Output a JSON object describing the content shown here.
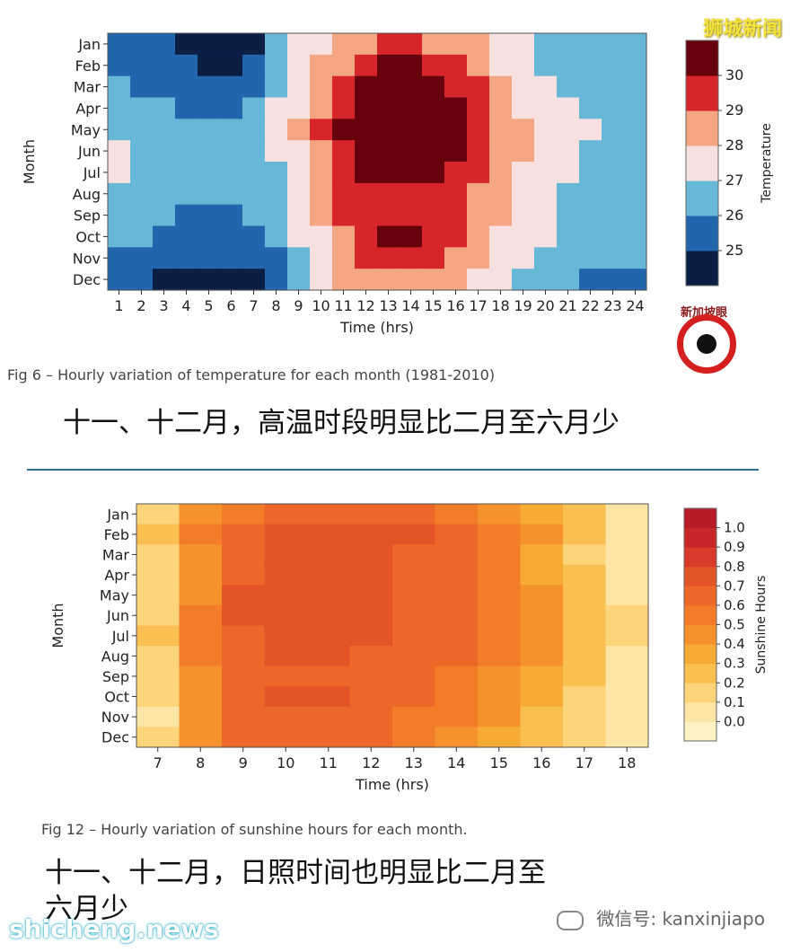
{
  "header": {
    "watermark_text": "狮城新闻"
  },
  "chart_data": [
    {
      "type": "heatmap",
      "title": "",
      "xlabel": "Time (hrs)",
      "ylabel": "Month",
      "x": [
        1,
        2,
        3,
        4,
        5,
        6,
        7,
        8,
        9,
        10,
        11,
        12,
        13,
        14,
        15,
        16,
        17,
        18,
        19,
        20,
        21,
        22,
        23,
        24
      ],
      "y": [
        "Jan",
        "Feb",
        "Mar",
        "Apr",
        "May",
        "Jun",
        "Jul",
        "Aug",
        "Sep",
        "Oct",
        "Nov",
        "Dec"
      ],
      "values": [
        [
          25.5,
          25.2,
          25.0,
          24.9,
          24.8,
          24.8,
          24.9,
          26.2,
          27.0,
          27.7,
          28.3,
          28.7,
          29.0,
          29.0,
          28.9,
          28.5,
          28.0,
          27.5,
          27.0,
          26.8,
          26.5,
          26.2,
          26.0,
          26.0
        ],
        [
          25.6,
          25.3,
          25.1,
          25.0,
          24.9,
          24.9,
          25.0,
          26.4,
          27.3,
          28.0,
          28.8,
          29.5,
          30.0,
          30.0,
          29.8,
          29.0,
          28.4,
          27.8,
          27.2,
          26.8,
          26.5,
          26.3,
          26.1,
          26.0
        ],
        [
          26.1,
          25.8,
          25.6,
          25.5,
          25.4,
          25.4,
          25.6,
          26.8,
          27.7,
          28.6,
          29.5,
          30.2,
          30.5,
          30.5,
          30.3,
          29.8,
          29.0,
          28.2,
          27.5,
          27.1,
          26.8,
          26.5,
          26.3,
          26.2
        ],
        [
          26.4,
          26.2,
          26.0,
          25.9,
          25.8,
          25.8,
          26.0,
          27.0,
          27.9,
          28.8,
          29.8,
          30.5,
          30.8,
          30.8,
          30.6,
          30.1,
          29.3,
          28.5,
          27.8,
          27.3,
          27.0,
          26.8,
          26.6,
          26.5
        ],
        [
          26.9,
          26.6,
          26.4,
          26.3,
          26.2,
          26.2,
          26.4,
          27.1,
          28.0,
          29.0,
          30.0,
          30.6,
          30.9,
          30.9,
          30.7,
          30.2,
          29.5,
          28.7,
          28.0,
          27.5,
          27.2,
          27.0,
          26.9,
          26.8
        ],
        [
          27.1,
          26.8,
          26.6,
          26.5,
          26.4,
          26.4,
          26.6,
          27.0,
          27.9,
          28.8,
          29.8,
          30.5,
          30.8,
          30.8,
          30.6,
          30.0,
          29.2,
          28.5,
          28.0,
          27.5,
          27.1,
          26.9,
          26.8,
          26.8
        ],
        [
          27.0,
          26.7,
          26.5,
          26.4,
          26.3,
          26.3,
          26.4,
          26.9,
          27.7,
          28.6,
          29.5,
          30.0,
          30.3,
          30.3,
          30.1,
          29.6,
          29.0,
          28.3,
          27.8,
          27.3,
          27.0,
          26.8,
          26.7,
          26.7
        ],
        [
          26.6,
          26.4,
          26.3,
          26.2,
          26.1,
          26.1,
          26.2,
          26.7,
          27.5,
          28.3,
          29.2,
          29.7,
          29.9,
          29.9,
          29.7,
          29.3,
          28.7,
          28.1,
          27.6,
          27.2,
          26.9,
          26.7,
          26.6,
          26.5
        ],
        [
          26.4,
          26.2,
          26.0,
          25.9,
          25.8,
          25.8,
          26.0,
          26.5,
          27.2,
          28.0,
          29.0,
          29.6,
          29.8,
          29.8,
          29.6,
          29.2,
          28.6,
          28.0,
          27.5,
          27.1,
          26.8,
          26.6,
          26.5,
          26.4
        ],
        [
          26.3,
          26.1,
          25.9,
          25.8,
          25.6,
          25.6,
          25.8,
          26.3,
          27.0,
          27.8,
          28.8,
          29.6,
          30.1,
          30.1,
          29.8,
          29.1,
          28.4,
          27.8,
          27.3,
          27.0,
          26.8,
          26.6,
          26.5,
          26.4
        ],
        [
          25.9,
          25.7,
          25.5,
          25.4,
          25.2,
          25.1,
          25.3,
          25.8,
          26.6,
          27.5,
          28.4,
          29.0,
          29.3,
          29.3,
          29.1,
          28.6,
          28.0,
          27.4,
          27.0,
          26.7,
          26.5,
          26.3,
          26.2,
          26.1
        ],
        [
          25.4,
          25.1,
          24.9,
          24.8,
          24.6,
          24.5,
          24.7,
          25.4,
          26.3,
          27.2,
          28.0,
          28.6,
          28.9,
          28.9,
          28.7,
          28.2,
          27.6,
          27.1,
          26.6,
          26.3,
          26.1,
          25.9,
          25.8,
          25.7
        ]
      ],
      "colorbar": {
        "label": "Temperature",
        "ticks": [
          25,
          26,
          27,
          28,
          29,
          30
        ]
      },
      "levels": [
        24,
        25,
        26,
        27,
        28,
        29,
        30,
        31
      ],
      "colors": [
        "#0b1f45",
        "#2166ac",
        "#67b8d6",
        "#f7e1e0",
        "#f4a582",
        "#d6262a",
        "#67000d"
      ],
      "caption": "Fig 6 – Hourly variation of temperature for each month (1981-2010)",
      "note": "十一、十二月，高温时段明显比二月至六月少"
    },
    {
      "type": "heatmap",
      "title": "",
      "xlabel": "Time (hrs)",
      "ylabel": "Month",
      "x": [
        7,
        8,
        9,
        10,
        11,
        12,
        13,
        14,
        15,
        16,
        17,
        18
      ],
      "y": [
        "Jan",
        "Feb",
        "Mar",
        "Apr",
        "May",
        "Jun",
        "Jul",
        "Aug",
        "Sep",
        "Oct",
        "Nov",
        "Dec"
      ],
      "values": [
        [
          0.15,
          0.45,
          0.55,
          0.62,
          0.63,
          0.62,
          0.6,
          0.55,
          0.47,
          0.32,
          0.2,
          0.05
        ],
        [
          0.2,
          0.5,
          0.62,
          0.72,
          0.72,
          0.7,
          0.7,
          0.68,
          0.55,
          0.4,
          0.22,
          0.08
        ],
        [
          0.17,
          0.48,
          0.68,
          0.75,
          0.75,
          0.72,
          0.68,
          0.6,
          0.52,
          0.35,
          0.18,
          0.05
        ],
        [
          0.15,
          0.45,
          0.67,
          0.75,
          0.76,
          0.72,
          0.66,
          0.6,
          0.5,
          0.37,
          0.2,
          0.06
        ],
        [
          0.16,
          0.47,
          0.7,
          0.77,
          0.78,
          0.74,
          0.68,
          0.62,
          0.55,
          0.42,
          0.25,
          0.08
        ],
        [
          0.18,
          0.5,
          0.7,
          0.77,
          0.78,
          0.74,
          0.68,
          0.62,
          0.55,
          0.42,
          0.27,
          0.1
        ],
        [
          0.2,
          0.52,
          0.65,
          0.72,
          0.73,
          0.72,
          0.68,
          0.62,
          0.55,
          0.42,
          0.27,
          0.1
        ],
        [
          0.18,
          0.5,
          0.62,
          0.7,
          0.7,
          0.68,
          0.65,
          0.6,
          0.52,
          0.4,
          0.25,
          0.08
        ],
        [
          0.15,
          0.45,
          0.6,
          0.67,
          0.68,
          0.65,
          0.6,
          0.55,
          0.48,
          0.35,
          0.2,
          0.05
        ],
        [
          0.1,
          0.42,
          0.62,
          0.7,
          0.7,
          0.66,
          0.6,
          0.55,
          0.45,
          0.32,
          0.18,
          0.04
        ],
        [
          0.07,
          0.4,
          0.6,
          0.67,
          0.67,
          0.62,
          0.56,
          0.5,
          0.4,
          0.28,
          0.14,
          0.03
        ],
        [
          0.1,
          0.42,
          0.6,
          0.65,
          0.65,
          0.6,
          0.55,
          0.47,
          0.38,
          0.27,
          0.12,
          0.02
        ]
      ],
      "colorbar": {
        "label": "Sunshine Hours",
        "ticks": [
          0.0,
          0.1,
          0.2,
          0.3,
          0.4,
          0.5,
          0.6,
          0.7,
          0.8,
          0.9,
          1.0
        ]
      },
      "levels": [
        -0.1,
        0.0,
        0.1,
        0.2,
        0.3,
        0.4,
        0.5,
        0.6,
        0.7,
        0.8,
        0.9,
        1.0,
        1.1
      ],
      "colors": [
        "#fff2c4",
        "#fde5a5",
        "#fcd47a",
        "#f9c051",
        "#f7ab35",
        "#f5922c",
        "#f27c28",
        "#ec6728",
        "#e35428",
        "#d93b2a",
        "#c72729",
        "#b71b25"
      ],
      "caption": "Fig 12 – Hourly variation of sunshine hours for each month.",
      "note_line1": "十一、十二月，日照时间也明显比二月至",
      "note_line2": "六月少"
    }
  ],
  "logo": {
    "text": "新加坡眼"
  },
  "footer": {
    "wechat_text": "微信号: kanxinjiapo",
    "site": "shicheng.news"
  }
}
